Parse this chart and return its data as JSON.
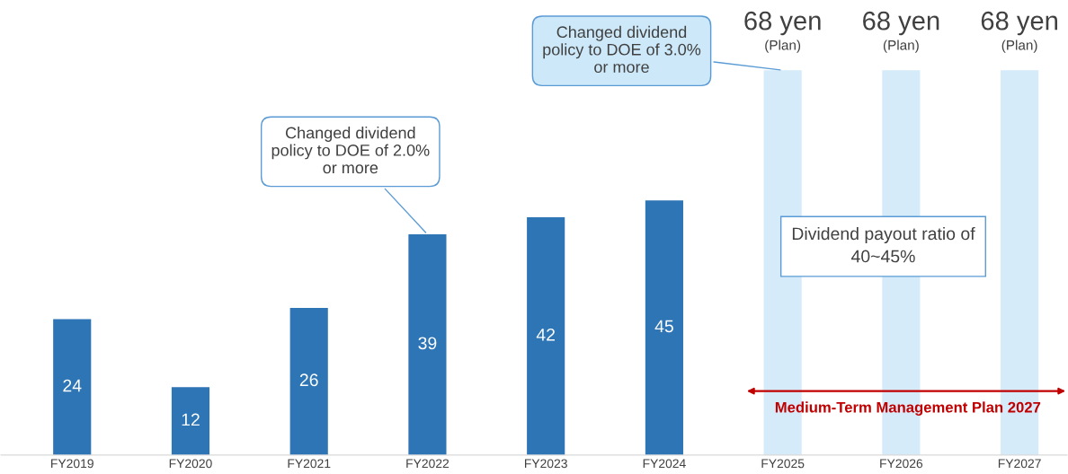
{
  "chart_data": {
    "type": "bar",
    "categories": [
      "FY2019",
      "FY2020",
      "FY2021",
      "FY2022",
      "FY2023",
      "FY2024",
      "FY2025",
      "FY2026",
      "FY2027"
    ],
    "values": [
      24,
      12,
      26,
      39,
      42,
      45,
      68,
      68,
      68
    ],
    "colors": [
      "#2e75b6",
      "#2e75b6",
      "#2e75b6",
      "#2e75b6",
      "#2e75b6",
      "#2e75b6",
      "#d6ebfa",
      "#d6ebfa",
      "#d6ebfa"
    ],
    "value_labels": [
      "24",
      "12",
      "26",
      "39",
      "42",
      "45",
      "68 yen\n(Plan)",
      "68 yen\n(Plan)",
      "68 yen\n(Plan)"
    ],
    "annotations": [
      {
        "text": "Changed dividend\npolicy to DOE of 2.0%\nor more",
        "x": "FY2022",
        "y": 39
      },
      {
        "text": "Changed dividend\npolicy to DOE of 3.0%\nor more",
        "x": "FY2025",
        "y": 68
      },
      "Dividend payout ratio of\n40~45%",
      "Medium-Term Management Plan 2027"
    ],
    "grid": false,
    "legend": false
  }
}
